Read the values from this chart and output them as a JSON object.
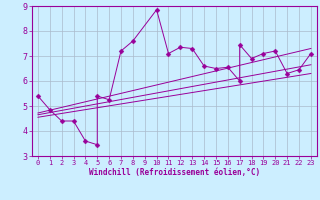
{
  "title": "",
  "xlabel": "Windchill (Refroidissement éolien,°C)",
  "bg_color": "#cceeff",
  "grid_color": "#aabbcc",
  "line_color": "#990099",
  "xlim": [
    -0.5,
    23.5
  ],
  "ylim": [
    3,
    9
  ],
  "xticks": [
    0,
    1,
    2,
    3,
    4,
    5,
    6,
    7,
    8,
    9,
    10,
    11,
    12,
    13,
    14,
    15,
    16,
    17,
    18,
    19,
    20,
    21,
    22,
    23
  ],
  "yticks": [
    3,
    4,
    5,
    6,
    7,
    8,
    9
  ],
  "scatter_x": [
    0,
    1,
    2,
    3,
    4,
    5,
    5,
    6,
    7,
    8,
    10,
    11,
    12,
    13,
    14,
    15,
    16,
    17,
    17,
    18,
    19,
    20,
    21,
    22,
    23
  ],
  "scatter_y": [
    5.4,
    4.85,
    4.4,
    4.4,
    3.6,
    3.45,
    5.4,
    5.25,
    7.2,
    7.6,
    8.85,
    7.1,
    7.35,
    7.3,
    6.6,
    6.5,
    6.55,
    6.0,
    7.45,
    6.9,
    7.1,
    7.2,
    6.3,
    6.45,
    7.1
  ],
  "reg_lines": [
    {
      "x": [
        0,
        23
      ],
      "y": [
        4.55,
        6.3
      ]
    },
    {
      "x": [
        0,
        23
      ],
      "y": [
        4.65,
        6.65
      ]
    },
    {
      "x": [
        0,
        23
      ],
      "y": [
        4.72,
        7.3
      ]
    }
  ],
  "tick_fontsize": 5,
  "xlabel_fontsize": 5.5,
  "marker_size": 2.5
}
